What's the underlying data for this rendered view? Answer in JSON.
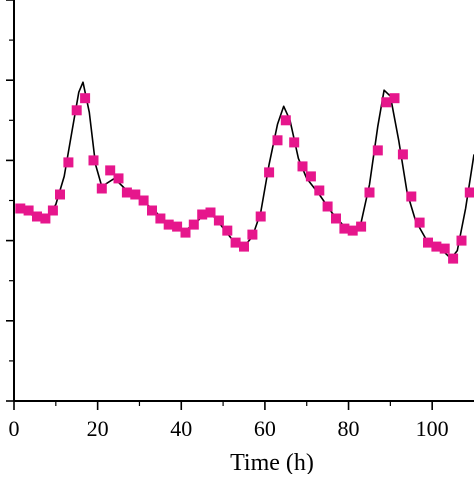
{
  "chart_data": {
    "type": "scatter",
    "title": "",
    "xlabel": "Time (h)",
    "ylabel": "",
    "xlim": [
      0,
      110
    ],
    "ylim": [
      0,
      10
    ],
    "grid": false,
    "legend": "none",
    "x_ticks": [
      0,
      20,
      40,
      60,
      80,
      100
    ],
    "x_tick_labels": [
      "0",
      "20",
      "40",
      "60",
      "80",
      "100"
    ],
    "y_tick_values": [
      0,
      1,
      2,
      3,
      4,
      5,
      6,
      7,
      8,
      9,
      10
    ],
    "colors": {
      "marker": "#e6168c",
      "line": "#000000",
      "axis": "#000000"
    },
    "series": [
      {
        "marker": "square",
        "points": [
          [
            1.5,
            4.8
          ],
          [
            3.5,
            4.75
          ],
          [
            5.5,
            4.6
          ],
          [
            7.5,
            4.55
          ],
          [
            9.3,
            4.75
          ],
          [
            11,
            5.15
          ],
          [
            13,
            5.95
          ],
          [
            15,
            7.25
          ],
          [
            17,
            7.55
          ],
          [
            19,
            6.0
          ],
          [
            21,
            5.3
          ],
          [
            23,
            5.75
          ],
          [
            25,
            5.55
          ],
          [
            27,
            5.2
          ],
          [
            29,
            5.15
          ],
          [
            31,
            5.0
          ],
          [
            33,
            4.75
          ],
          [
            35,
            4.55
          ],
          [
            37,
            4.4
          ],
          [
            39,
            4.35
          ],
          [
            41,
            4.2
          ],
          [
            43,
            4.4
          ],
          [
            45,
            4.65
          ],
          [
            47,
            4.7
          ],
          [
            49,
            4.5
          ],
          [
            51,
            4.25
          ],
          [
            53,
            3.95
          ],
          [
            55,
            3.85
          ],
          [
            57,
            4.15
          ],
          [
            59,
            4.6
          ],
          [
            61,
            5.7
          ],
          [
            63,
            6.5
          ],
          [
            65,
            7.0
          ],
          [
            67,
            6.45
          ],
          [
            69,
            5.85
          ],
          [
            71,
            5.6
          ],
          [
            73,
            5.25
          ],
          [
            75,
            4.85
          ],
          [
            77,
            4.55
          ],
          [
            79,
            4.3
          ],
          [
            81,
            4.25
          ],
          [
            83,
            4.35
          ],
          [
            85,
            5.2
          ],
          [
            87,
            6.25
          ],
          [
            89,
            7.45
          ],
          [
            91,
            7.55
          ],
          [
            93,
            6.15
          ],
          [
            95,
            5.1
          ],
          [
            97,
            4.45
          ],
          [
            99,
            3.95
          ],
          [
            101,
            3.85
          ],
          [
            103,
            3.8
          ],
          [
            105,
            3.55
          ],
          [
            107,
            4.0
          ],
          [
            109,
            5.2
          ]
        ]
      }
    ],
    "fit_line": {
      "points": [
        [
          1.5,
          4.8
        ],
        [
          5,
          4.6
        ],
        [
          8,
          4.6
        ],
        [
          10,
          4.9
        ],
        [
          12,
          5.6
        ],
        [
          14,
          6.8
        ],
        [
          15.5,
          7.7
        ],
        [
          16.5,
          7.95
        ],
        [
          18,
          7.2
        ],
        [
          19.5,
          5.9
        ],
        [
          21,
          5.35
        ],
        [
          24,
          5.55
        ],
        [
          27,
          5.25
        ],
        [
          30,
          5.05
        ],
        [
          33,
          4.8
        ],
        [
          36,
          4.5
        ],
        [
          39,
          4.35
        ],
        [
          41,
          4.25
        ],
        [
          44,
          4.5
        ],
        [
          46.5,
          4.75
        ],
        [
          49,
          4.45
        ],
        [
          52,
          4.05
        ],
        [
          55,
          3.85
        ],
        [
          57,
          4.1
        ],
        [
          59,
          4.7
        ],
        [
          61,
          5.9
        ],
        [
          63,
          6.9
        ],
        [
          64.5,
          7.35
        ],
        [
          66,
          7.0
        ],
        [
          68,
          6.05
        ],
        [
          70,
          5.55
        ],
        [
          73,
          5.15
        ],
        [
          76,
          4.7
        ],
        [
          79,
          4.35
        ],
        [
          81,
          4.25
        ],
        [
          83,
          4.45
        ],
        [
          85,
          5.4
        ],
        [
          87,
          6.85
        ],
        [
          88.5,
          7.75
        ],
        [
          90,
          7.6
        ],
        [
          92,
          6.5
        ],
        [
          94,
          5.2
        ],
        [
          96,
          4.5
        ],
        [
          99,
          3.95
        ],
        [
          102,
          3.8
        ],
        [
          104.5,
          3.55
        ],
        [
          106,
          3.75
        ],
        [
          108,
          4.8
        ],
        [
          110,
          6.15
        ]
      ]
    }
  }
}
